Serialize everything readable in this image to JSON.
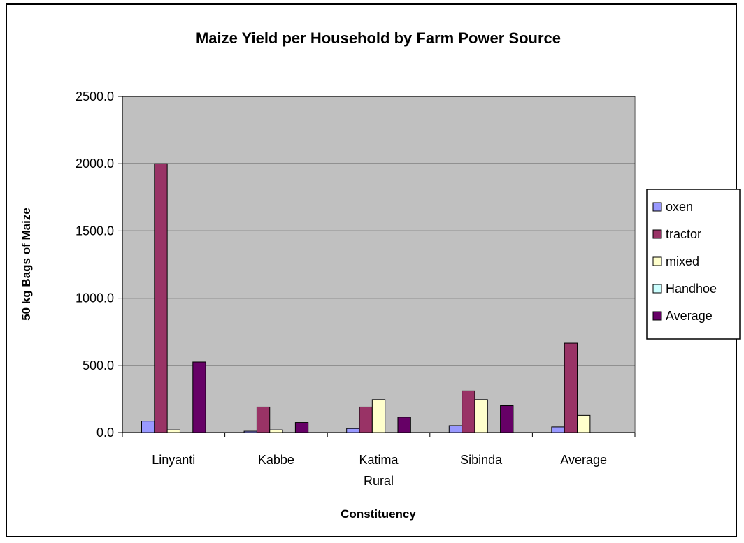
{
  "chart_data": {
    "type": "bar",
    "title": "Maize Yield per Household by Farm Power Source",
    "xlabel": "Constituency",
    "ylabel": "50 kg Bags of Maize",
    "categories": [
      [
        "Linyanti"
      ],
      [
        "Kabbe"
      ],
      [
        "Katima",
        "Rural"
      ],
      [
        "Sibinda"
      ],
      [
        "Average"
      ]
    ],
    "yticks": [
      "0.0",
      "500.0",
      "1000.0",
      "1500.0",
      "2000.0",
      "2500.0"
    ],
    "ylim": [
      0,
      2500
    ],
    "grid": true,
    "legend_position": "right",
    "series": [
      {
        "name": "oxen",
        "color": "#9999ff",
        "values": [
          85,
          10,
          30,
          52,
          42
        ]
      },
      {
        "name": "tractor",
        "color": "#993366",
        "values": [
          2000,
          190,
          190,
          310,
          665
        ]
      },
      {
        "name": "mixed",
        "color": "#ffffcc",
        "values": [
          20,
          20,
          245,
          245,
          128
        ]
      },
      {
        "name": "Handhoe",
        "color": "#ccffff",
        "values": [
          0,
          0,
          0,
          0,
          0
        ]
      },
      {
        "name": "Average",
        "color": "#660066",
        "values": [
          525,
          75,
          115,
          200,
          0
        ]
      }
    ],
    "plot_background": "#c0c0c0"
  }
}
